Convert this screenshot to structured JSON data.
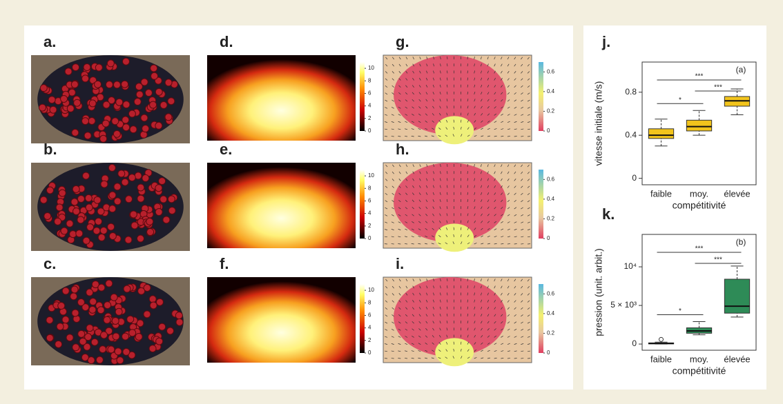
{
  "panels": [
    {
      "label": "a."
    },
    {
      "label": "b."
    },
    {
      "label": "c."
    },
    {
      "label": "d.",
      "colorbar": {
        "lim": [
          0,
          11
        ],
        "ticks": [
          0,
          2,
          4,
          6,
          8,
          10
        ]
      }
    },
    {
      "label": "e.",
      "colorbar": {
        "lim": [
          0,
          11
        ],
        "ticks": [
          0,
          2,
          4,
          6,
          8,
          10
        ]
      }
    },
    {
      "label": "f.",
      "colorbar": {
        "lim": [
          0,
          11
        ],
        "ticks": [
          0,
          2,
          4,
          6,
          8,
          10
        ]
      }
    },
    {
      "label": "g.",
      "colorbar": {
        "lim": [
          0,
          0.7
        ],
        "ticks": [
          0,
          0.2,
          0.4,
          0.6
        ]
      }
    },
    {
      "label": "h.",
      "colorbar": {
        "lim": [
          0,
          0.7
        ],
        "ticks": [
          0,
          0.2,
          0.4,
          0.6
        ]
      }
    },
    {
      "label": "i.",
      "colorbar": {
        "lim": [
          0,
          0.7
        ],
        "ticks": [
          0,
          0.2,
          0.4,
          0.6
        ]
      }
    }
  ],
  "chart_data": [
    {
      "type": "box",
      "panel_label": "j.",
      "title": "(a)",
      "y_label": "vitesse initiale (m/s)",
      "x_label": "compétitivité",
      "categories": [
        "faible",
        "moy.",
        "élevée"
      ],
      "color": "#f2c41c",
      "boxes": [
        {
          "low": 0.3,
          "q1": 0.37,
          "median": 0.4,
          "q3": 0.46,
          "high": 0.55
        },
        {
          "low": 0.4,
          "q1": 0.44,
          "median": 0.48,
          "q3": 0.54,
          "high": 0.63
        },
        {
          "low": 0.59,
          "q1": 0.67,
          "median": 0.72,
          "q3": 0.76,
          "high": 0.83
        }
      ],
      "outliers": [
        [],
        [],
        []
      ],
      "ylim": [
        -0.06,
        1.08
      ],
      "yticks": [
        0,
        0.4,
        0.8
      ],
      "annotations": [
        {
          "text": "*",
          "between": [
            0,
            1
          ]
        },
        {
          "text": "***",
          "between": [
            1,
            2
          ]
        },
        {
          "text": "***",
          "between": [
            0,
            2
          ]
        }
      ]
    },
    {
      "type": "box",
      "panel_label": "k.",
      "title": "(b)",
      "y_label": "pression (unit. arbit.)",
      "x_label": "compétitivité",
      "categories": [
        "faible",
        "moy.",
        "élevée"
      ],
      "color": "#2e8b57",
      "boxes": [
        {
          "low": 0,
          "q1": 20,
          "median": 80,
          "q3": 150,
          "high": 250
        },
        {
          "low": 1200,
          "q1": 1400,
          "median": 1700,
          "q3": 2100,
          "high": 2900
        },
        {
          "low": 3500,
          "q1": 4000,
          "median": 4900,
          "q3": 8400,
          "high": 10100
        }
      ],
      "outliers": [
        [
          600
        ],
        [],
        []
      ],
      "ylim": [
        -800,
        14200
      ],
      "yticks": [
        0,
        {
          "value": 5000,
          "label": "5 × 10³"
        },
        {
          "value": 10000,
          "label": "10⁴"
        }
      ],
      "annotations": [
        {
          "text": "*",
          "between": [
            0,
            1
          ]
        },
        {
          "text": "***",
          "between": [
            1,
            2
          ]
        },
        {
          "text": "***",
          "between": [
            0,
            2
          ]
        }
      ]
    }
  ]
}
